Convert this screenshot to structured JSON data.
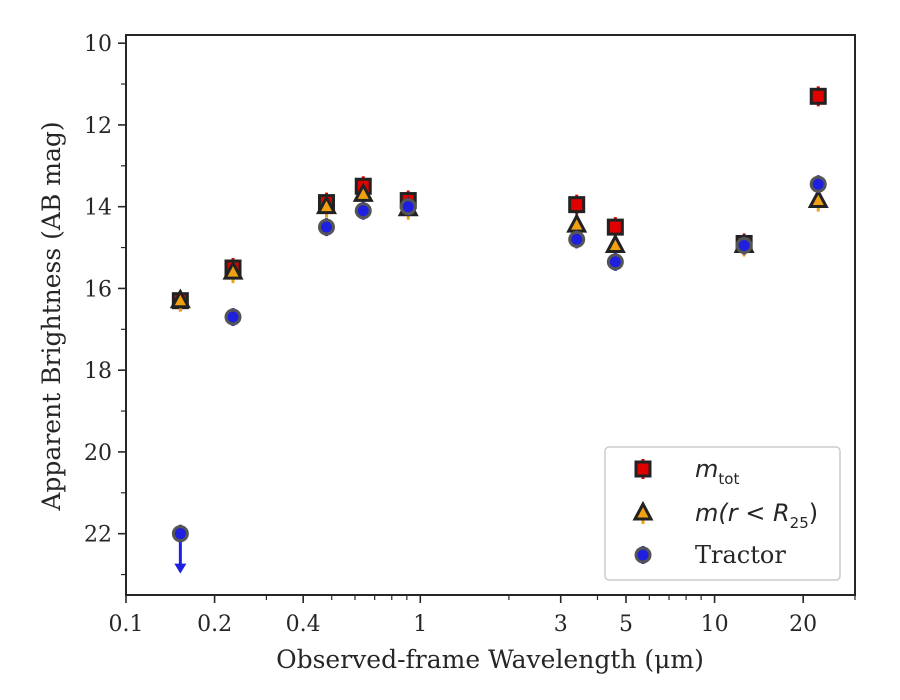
{
  "chart_data": {
    "type": "scatter",
    "xscale": "log",
    "xlim": [
      0.1,
      30
    ],
    "ylim": [
      23.5,
      9.8
    ],
    "y_inverted": true,
    "xlabel": "Observed-frame Wavelength (μm)",
    "ylabel": "Apparent Brightness (AB mag)",
    "x_ticks": [
      {
        "value": 0.1,
        "label": "0.1"
      },
      {
        "value": 0.2,
        "label": "0.2"
      },
      {
        "value": 0.4,
        "label": "0.4"
      },
      {
        "value": 1,
        "label": "1"
      },
      {
        "value": 3,
        "label": "3"
      },
      {
        "value": 5,
        "label": "5"
      },
      {
        "value": 10,
        "label": "10"
      },
      {
        "value": 20,
        "label": "20"
      }
    ],
    "x_minor_ticks": [
      0.3,
      0.5,
      0.6,
      0.7,
      0.8,
      0.9,
      2,
      4,
      6,
      7,
      8,
      9,
      30
    ],
    "y_ticks": [
      {
        "value": 10,
        "label": "10"
      },
      {
        "value": 12,
        "label": "12"
      },
      {
        "value": 14,
        "label": "14"
      },
      {
        "value": 16,
        "label": "16"
      },
      {
        "value": 18,
        "label": "18"
      },
      {
        "value": 20,
        "label": "20"
      },
      {
        "value": 22,
        "label": "22"
      }
    ],
    "legend_position": "lower-right",
    "grid": false,
    "series": [
      {
        "name": "m_tot",
        "marker": "square",
        "color": "#e00000",
        "edge_color": "#222222",
        "points": [
          {
            "x": 0.153,
            "y": 16.3
          },
          {
            "x": 0.231,
            "y": 15.5
          },
          {
            "x": 0.48,
            "y": 13.9
          },
          {
            "x": 0.64,
            "y": 13.5
          },
          {
            "x": 0.91,
            "y": 13.85
          },
          {
            "x": 3.4,
            "y": 13.95
          },
          {
            "x": 4.6,
            "y": 14.5
          },
          {
            "x": 12.6,
            "y": 14.9
          },
          {
            "x": 22.5,
            "y": 11.3
          }
        ]
      },
      {
        "name": "m(r < R25)",
        "marker": "triangle",
        "color": "#f0a010",
        "edge_color": "#222222",
        "points": [
          {
            "x": 0.153,
            "y": 16.3
          },
          {
            "x": 0.231,
            "y": 15.6
          },
          {
            "x": 0.48,
            "y": 14.0
          },
          {
            "x": 0.64,
            "y": 13.7
          },
          {
            "x": 0.91,
            "y": 14.05
          },
          {
            "x": 3.4,
            "y": 14.45
          },
          {
            "x": 4.6,
            "y": 14.95
          },
          {
            "x": 12.6,
            "y": 14.95
          },
          {
            "x": 22.5,
            "y": 13.85
          }
        ]
      },
      {
        "name": "Tractor",
        "marker": "circle",
        "color": "#1f1fe0",
        "edge_color": "#555555",
        "points": [
          {
            "x": 0.153,
            "y": 22.0,
            "upper_limit": true
          },
          {
            "x": 0.231,
            "y": 16.7
          },
          {
            "x": 0.48,
            "y": 14.5
          },
          {
            "x": 0.64,
            "y": 14.1
          },
          {
            "x": 0.91,
            "y": 14.0
          },
          {
            "x": 3.4,
            "y": 14.8
          },
          {
            "x": 4.6,
            "y": 15.35
          },
          {
            "x": 12.6,
            "y": 14.95
          },
          {
            "x": 22.5,
            "y": 13.45
          }
        ]
      }
    ],
    "legend": [
      {
        "series": "m_tot",
        "base": "m",
        "sub": "tot"
      },
      {
        "series": "m(r < R25)",
        "pre": "m(r < R",
        "sub": "25",
        "post": ")"
      },
      {
        "series": "Tractor",
        "label": "Tractor"
      }
    ]
  }
}
